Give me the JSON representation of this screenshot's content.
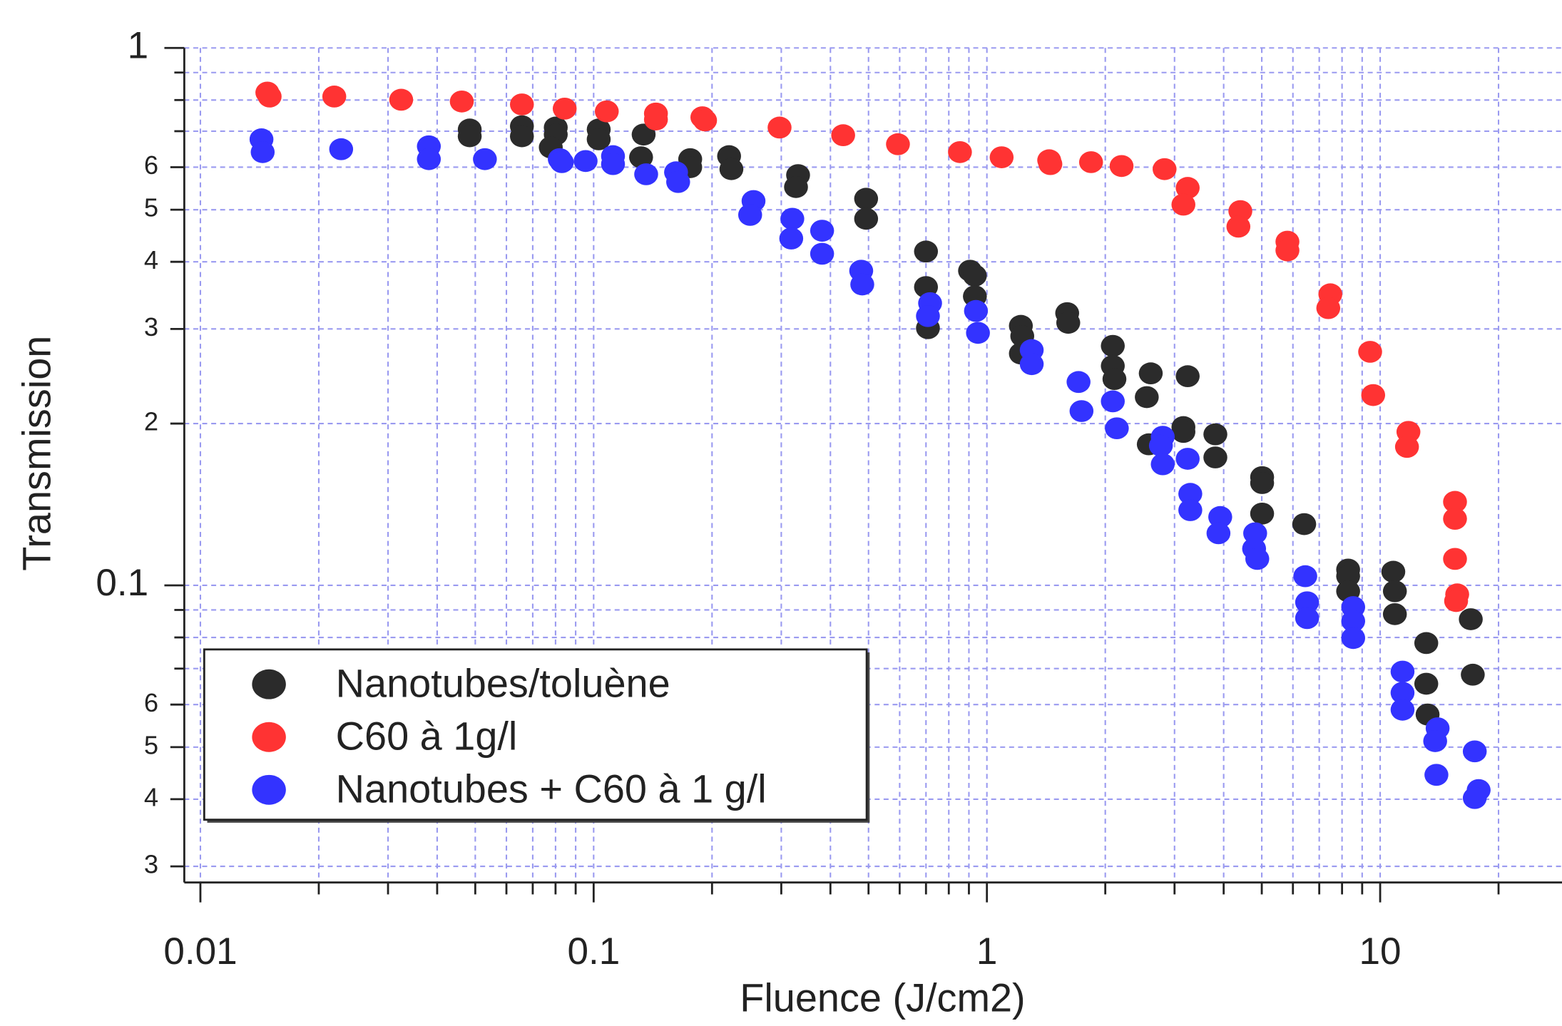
{
  "chart_data": {
    "type": "scatter",
    "x_label": "Fluence (J/cm2)",
    "y_label": "Transmission",
    "xscale": "log",
    "yscale": "log",
    "grid": true,
    "legend_position": "lower left",
    "xlim": [
      0.0091,
      29
    ],
    "ylim": [
      0.028,
      1
    ],
    "xticks": [
      0.01,
      0.1,
      1,
      10
    ],
    "xminorticks": [
      0.02,
      0.03,
      0.04,
      0.05,
      0.06,
      0.07,
      0.08,
      0.09,
      0.2,
      0.3,
      0.4,
      0.5,
      0.6,
      0.7,
      0.8,
      0.9,
      2,
      3,
      4,
      5,
      6,
      7,
      8,
      9,
      20
    ],
    "yticks": [
      1,
      {
        "value": 0.6,
        "label": "6"
      },
      {
        "value": 0.5,
        "label": "5"
      },
      {
        "value": 0.4,
        "label": "4"
      },
      {
        "value": 0.3,
        "label": "3"
      },
      {
        "value": 0.2,
        "label": "2"
      },
      0.1,
      {
        "value": 0.06,
        "label": "6"
      },
      {
        "value": 0.05,
        "label": "5"
      },
      {
        "value": 0.04,
        "label": "4"
      },
      {
        "value": 0.03,
        "label": "3"
      }
    ],
    "yminorticks": [
      0.9,
      0.8,
      0.7,
      0.09,
      0.08,
      0.07
    ],
    "series": [
      {
        "name": "Nanotubes/toluène",
        "color": "#2b2b2b",
        "x": [
          0.0484,
          0.0484,
          0.0657,
          0.0657,
          0.0801,
          0.0801,
          0.0778,
          0.103,
          0.103,
          0.134,
          0.132,
          0.176,
          0.176,
          0.221,
          0.224,
          0.331,
          0.327,
          0.493,
          0.493,
          0.7,
          0.7,
          0.708,
          0.906,
          0.932,
          0.932,
          1.22,
          1.23,
          1.22,
          1.6,
          1.61,
          2.09,
          2.09,
          2.11,
          2.61,
          2.55,
          3.24,
          2.58,
          3.16,
          3.16,
          3.81,
          3.81,
          5.01,
          5.01,
          5.01,
          6.41,
          8.29,
          8.29,
          8.29,
          10.8,
          10.9,
          10.9,
          13.1,
          13.1,
          13.2,
          17.0,
          17.2
        ],
        "values": [
          0.705,
          0.685,
          0.715,
          0.685,
          0.711,
          0.69,
          0.653,
          0.705,
          0.676,
          0.69,
          0.626,
          0.621,
          0.6,
          0.629,
          0.595,
          0.58,
          0.551,
          0.524,
          0.481,
          0.418,
          0.359,
          0.301,
          0.385,
          0.377,
          0.345,
          0.304,
          0.291,
          0.27,
          0.321,
          0.308,
          0.279,
          0.256,
          0.242,
          0.248,
          0.224,
          0.245,
          0.183,
          0.197,
          0.193,
          0.191,
          0.173,
          0.159,
          0.155,
          0.136,
          0.13,
          0.107,
          0.104,
          0.0975,
          0.106,
          0.0975,
          0.0884,
          0.0781,
          0.0656,
          0.0575,
          0.0865,
          0.0682
        ]
      },
      {
        "name": "C60 à 1g/l",
        "color": "#ff3333",
        "x": [
          0.0148,
          0.015,
          0.0219,
          0.0324,
          0.0462,
          0.0657,
          0.0844,
          0.108,
          0.144,
          0.144,
          0.189,
          0.192,
          0.297,
          0.431,
          0.594,
          0.854,
          1.09,
          1.44,
          1.45,
          1.84,
          2.2,
          2.83,
          3.24,
          3.16,
          4.41,
          4.36,
          5.81,
          5.81,
          7.47,
          7.38,
          9.43,
          9.6,
          11.8,
          11.7,
          15.5,
          15.5,
          15.5,
          15.7,
          15.6
        ],
        "values": [
          0.826,
          0.812,
          0.812,
          0.801,
          0.795,
          0.785,
          0.771,
          0.762,
          0.755,
          0.736,
          0.743,
          0.733,
          0.711,
          0.688,
          0.662,
          0.64,
          0.626,
          0.618,
          0.608,
          0.613,
          0.603,
          0.595,
          0.549,
          0.511,
          0.497,
          0.465,
          0.436,
          0.42,
          0.348,
          0.328,
          0.272,
          0.226,
          0.193,
          0.181,
          0.143,
          0.133,
          0.112,
          0.0962,
          0.0935
        ]
      },
      {
        "name": "Nanotubes + C60 à 1 g/l",
        "color": "#3333ff",
        "x": [
          0.0143,
          0.0144,
          0.0228,
          0.0381,
          0.0381,
          0.0529,
          0.082,
          0.083,
          0.0954,
          0.112,
          0.112,
          0.136,
          0.162,
          0.164,
          0.255,
          0.25,
          0.32,
          0.318,
          0.381,
          0.381,
          0.479,
          0.482,
          0.717,
          0.708,
          0.938,
          0.949,
          1.3,
          1.3,
          1.71,
          1.74,
          2.09,
          2.14,
          2.8,
          2.77,
          2.8,
          3.24,
          3.29,
          3.29,
          3.92,
          3.88,
          4.81,
          4.78,
          4.87,
          6.45,
          6.52,
          6.52,
          8.54,
          8.54,
          8.54,
          11.4,
          11.4,
          11.4,
          14.0,
          13.8,
          13.9,
          17.4,
          17.8,
          17.4
        ],
        "values": [
          0.676,
          0.64,
          0.648,
          0.656,
          0.621,
          0.621,
          0.621,
          0.613,
          0.616,
          0.629,
          0.608,
          0.582,
          0.587,
          0.563,
          0.519,
          0.489,
          0.481,
          0.442,
          0.457,
          0.414,
          0.385,
          0.363,
          0.335,
          0.317,
          0.324,
          0.295,
          0.274,
          0.258,
          0.239,
          0.211,
          0.22,
          0.196,
          0.189,
          0.182,
          0.168,
          0.172,
          0.148,
          0.138,
          0.134,
          0.125,
          0.125,
          0.117,
          0.112,
          0.104,
          0.093,
          0.0869,
          0.0911,
          0.0858,
          0.0798,
          0.0691,
          0.0631,
          0.0587,
          0.0542,
          0.0513,
          0.0444,
          0.0491,
          0.0416,
          0.0402
        ]
      }
    ]
  }
}
